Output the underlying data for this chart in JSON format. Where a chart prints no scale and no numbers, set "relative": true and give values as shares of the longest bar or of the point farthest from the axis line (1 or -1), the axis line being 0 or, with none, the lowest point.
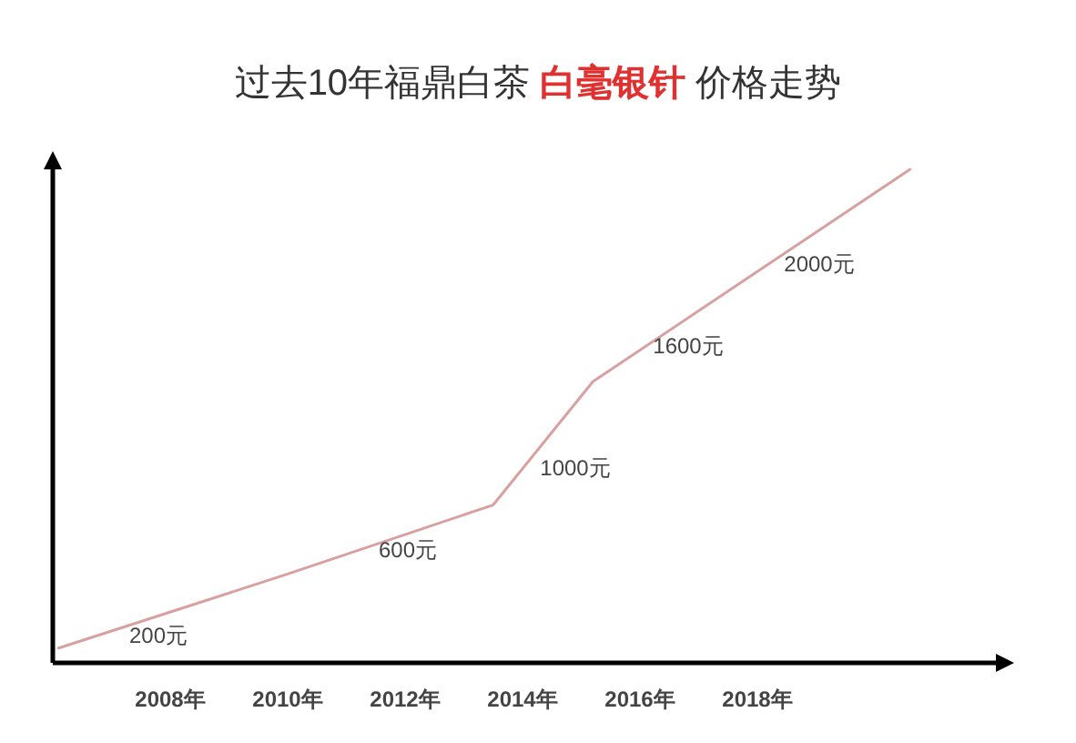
{
  "chart_data": {
    "type": "line",
    "title": "过去10年福鼎白茶 白毫银针 价格走势",
    "relative": true,
    "x": [
      2006.1,
      2010,
      2013.5,
      2015.2,
      2020.6
    ],
    "series": [
      {
        "color": "#d9a0a0",
        "values": [
          0.03,
          0.18,
          0.32,
          0.57,
          1
        ]
      }
    ],
    "xlim": [
      2006,
      2022
    ],
    "xticks": [
      {
        "value": 2008,
        "label": "2008年"
      },
      {
        "value": 2010,
        "label": "2010年"
      },
      {
        "value": 2012,
        "label": "2012年"
      },
      {
        "value": 2014,
        "label": "2014年"
      },
      {
        "value": 2016,
        "label": "2016年"
      },
      {
        "value": 2018,
        "label": "2018年"
      }
    ],
    "annotations": [
      "200元",
      "600元",
      "1000元",
      "1600元",
      "2000元"
    ],
    "grid": false,
    "marker": "none",
    "line_style": "solid"
  }
}
